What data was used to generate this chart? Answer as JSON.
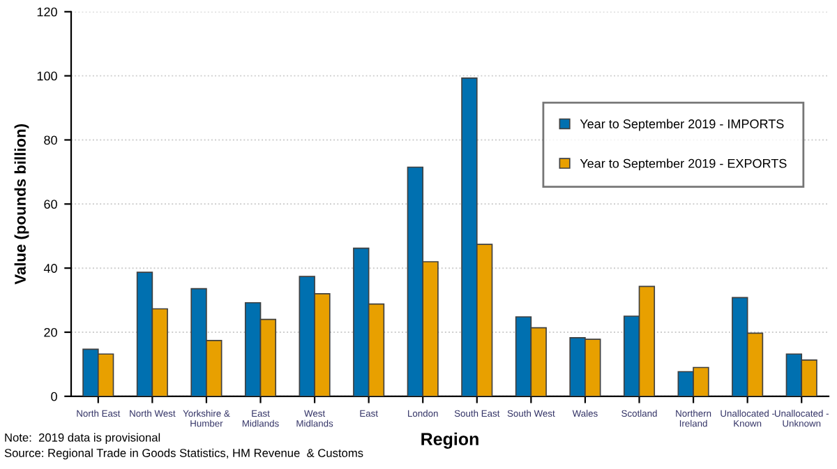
{
  "chart_data": {
    "type": "bar",
    "xlabel": "Region",
    "ylabel": "Value (pounds billion)",
    "categories": [
      "North East",
      "North West",
      "Yorkshire &\nHumber",
      "East\nMidlands",
      "West\nMidlands",
      "East",
      "London",
      "South East",
      "South West",
      "Wales",
      "Scotland",
      "Northern\nIreland",
      "Unallocated -\nKnown",
      "Unallocated -\nUnknown"
    ],
    "series": [
      {
        "name": "Year to September 2019 - IMPORTS",
        "color": "#0070b0",
        "values": [
          14.7,
          38.7,
          33.6,
          29.2,
          37.4,
          46.2,
          71.5,
          99.3,
          24.8,
          18.3,
          25.0,
          7.7,
          30.8,
          13.2
        ]
      },
      {
        "name": "Year to September 2019 - EXPORTS",
        "color": "#e8a000",
        "values": [
          13.2,
          27.3,
          17.4,
          24.0,
          32.0,
          28.8,
          42.0,
          47.4,
          21.4,
          17.8,
          34.3,
          9.0,
          19.7,
          11.3
        ]
      }
    ],
    "ylim": [
      0,
      120
    ],
    "yticks": [
      0,
      20,
      40,
      60,
      80,
      100,
      120
    ],
    "grid": "y",
    "legend": "top right",
    "annotations": [
      "Note:  2019 data is provisional",
      "Source: Regional Trade in Goods Statistics, HM Revenue  & Customs"
    ]
  }
}
